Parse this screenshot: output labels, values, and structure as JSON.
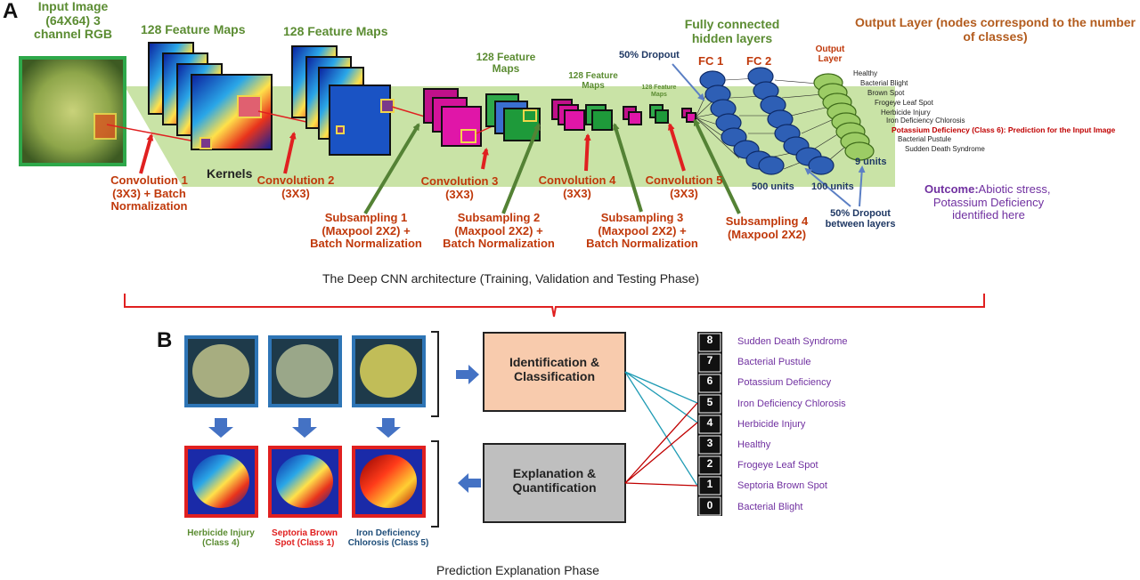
{
  "panel_a": {
    "letter": "A",
    "input_title": "Input Image\n(64X64) 3\nchannel RGB",
    "fmap_1": "128 Feature Maps",
    "fmap_2": "128 Feature Maps",
    "fmap_3": "128 Feature\nMaps",
    "fmap_4": "128 Feature\nMaps",
    "fmap_5": "128 Feature\nMaps",
    "kernels": "Kernels",
    "conv1": "Convolution 1\n(3X3) + Batch\nNormalization",
    "conv2": "Convolution 2\n(3X3)",
    "conv3": "Convolution 3\n(3X3)",
    "conv4": "Convolution 4\n(3X3)",
    "conv5": "Convolution 5\n(3X3)",
    "sub1": "Subsampling 1\n(Maxpool 2X2) +\nBatch Normalization",
    "sub2": "Subsampling 2\n(Maxpool 2X2) +\nBatch Normalization",
    "sub3": "Subsampling 3\n(Maxpool 2X2) +\nBatch Normalization",
    "sub4": "Subsampling 4\n(Maxpool 2X2)",
    "dropout": "50% Dropout",
    "fc_title": "Fully connected\nhidden layers",
    "fc1": "FC 1",
    "fc2": "FC 2",
    "output_title": "Output\nLayer",
    "output_layer_heading": "Output Layer (nodes correspond to the number\nof classes)",
    "units_500": "500 units",
    "units_100": "100 units",
    "units_9": "9 units",
    "dropout_between": "50% Dropout\nbetween layers",
    "outcome_label": "Outcome:",
    "outcome_text": "Abiotic stress,\nPotassium Deficiency\nidentified here",
    "output_classes": [
      "Healthy",
      "Bacterial Blight",
      "Brown Spot",
      "Frogeye Leaf Spot",
      "Herbicide Injury",
      "Iron Deficiency Chlorosis"
    ],
    "prediction": "Potassium Deficiency (Class 6): Prediction for the Input Image",
    "output_classes_after": [
      "Bacterial Pustule",
      "Sudden Death Syndrome"
    ],
    "caption": "The Deep CNN architecture (Training, Validation and Testing Phase)"
  },
  "panel_b": {
    "letter": "B",
    "identification": "Identification &\nClassification",
    "explanation": "Explanation &\nQuantification",
    "leaf_labels": [
      "Herbicide Injury\n(Class 4)",
      "Septoria Brown\nSpot (Class 1)",
      "Iron Deficiency\nChlorosis (Class 5)"
    ],
    "class_list": [
      {
        "num": "8",
        "label": "Sudden Death Syndrome"
      },
      {
        "num": "7",
        "label": "Bacterial Pustule"
      },
      {
        "num": "6",
        "label": "Potassium Deficiency"
      },
      {
        "num": "5",
        "label": "Iron Deficiency Chlorosis"
      },
      {
        "num": "4",
        "label": "Herbicide Injury"
      },
      {
        "num": "3",
        "label": "Healthy"
      },
      {
        "num": "2",
        "label": "Frogeye Leaf Spot"
      },
      {
        "num": "1",
        "label": "Septoria Brown Spot"
      },
      {
        "num": "0",
        "label": "Bacterial Blight"
      }
    ],
    "caption": "Prediction Explanation Phase"
  },
  "colors": {
    "band": "#c9e3a6",
    "title_green": "#5b8c32",
    "label_red": "#c0390b",
    "navy": "#1f3864",
    "purple": "#7030a0",
    "node_blue": "#2e5fb5",
    "node_green": "#9ccc65",
    "id_box": "#f8cbad",
    "exp_box": "#bfbfbf"
  }
}
